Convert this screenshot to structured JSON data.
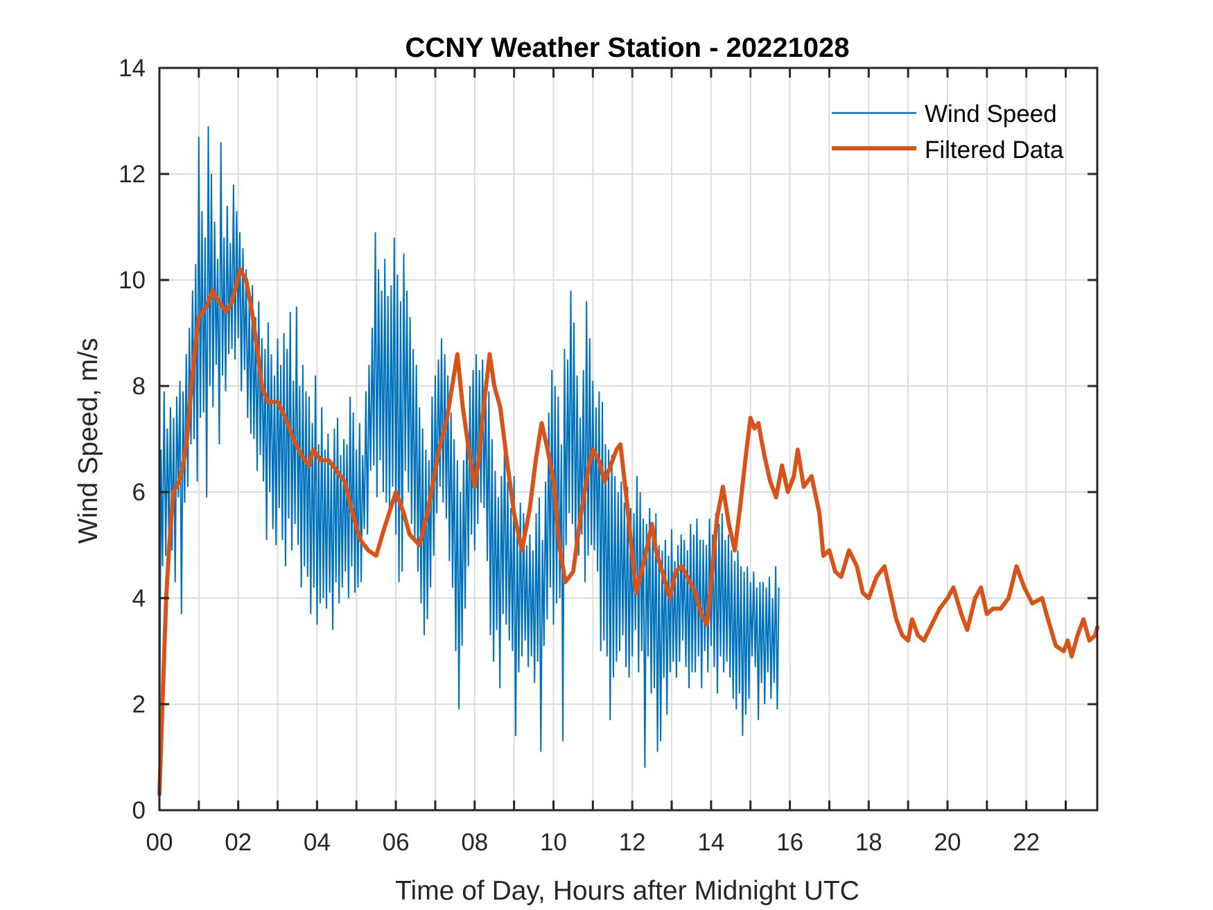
{
  "chart_data": {
    "type": "line",
    "title": "CCNY Weather Station - 20221028",
    "xlabel": "Time of Day, Hours after Midnight UTC",
    "ylabel": "Wind Speed, m/s",
    "xlim": [
      0,
      23.8
    ],
    "ylim": [
      0,
      14
    ],
    "grid": true,
    "legend_position": "top-right",
    "xticks": [
      0,
      2,
      4,
      6,
      8,
      10,
      12,
      14,
      16,
      18,
      20,
      22
    ],
    "xtick_labels": [
      "00",
      "02",
      "04",
      "06",
      "08",
      "10",
      "12",
      "14",
      "16",
      "18",
      "20",
      "22"
    ],
    "xgrid_step_hours": 1,
    "yticks": [
      0,
      2,
      4,
      6,
      8,
      10,
      12,
      14
    ],
    "ytick_labels": [
      "0",
      "2",
      "4",
      "6",
      "8",
      "10",
      "12",
      "14"
    ],
    "series": [
      {
        "name": "Wind Speed",
        "color": "#0072BD",
        "x_start": 0,
        "x_step": 0.04,
        "values": [
          0.3,
          6.8,
          4.6,
          7.9,
          4.8,
          7.2,
          5.2,
          7.6,
          4.9,
          7.4,
          4.3,
          7.8,
          5.9,
          8.1,
          3.7,
          7.9,
          5.8,
          8.6,
          6.1,
          9.1,
          6.9,
          9.8,
          7.0,
          10.3,
          6.2,
          12.7,
          7.4,
          11.3,
          7.5,
          10.8,
          5.9,
          12.9,
          8.0,
          12.0,
          7.6,
          11.1,
          8.4,
          10.4,
          6.9,
          12.6,
          8.2,
          10.8,
          7.9,
          11.4,
          8.6,
          10.7,
          8.7,
          11.8,
          8.5,
          11.3,
          8.9,
          10.9,
          7.9,
          10.6,
          8.3,
          10.2,
          7.4,
          9.6,
          7.1,
          9.9,
          7.0,
          9.3,
          6.4,
          9.6,
          6.7,
          8.9,
          6.2,
          8.7,
          5.1,
          9.2,
          6.0,
          8.6,
          5.3,
          8.2,
          5.0,
          8.9,
          5.7,
          8.4,
          5.1,
          9.0,
          4.6,
          8.7,
          5.5,
          9.4,
          4.9,
          8.1,
          5.4,
          9.5,
          5.0,
          8.0,
          4.2,
          8.4,
          4.6,
          7.9,
          4.4,
          7.8,
          3.7,
          7.3,
          4.2,
          8.2,
          3.5,
          6.9,
          3.9,
          7.6,
          4.0,
          6.8,
          3.8,
          7.1,
          4.1,
          6.5,
          3.4,
          7.2,
          4.3,
          7.4,
          3.9,
          6.7,
          4.2,
          7.0,
          4.5,
          6.9,
          4.0,
          7.8,
          4.6,
          7.5,
          4.1,
          6.8,
          4.2,
          7.3,
          4.3,
          6.7,
          5.3,
          7.9,
          5.2,
          8.4,
          6.4,
          9.1,
          6.5,
          10.9,
          5.9,
          10.2,
          6.6,
          9.8,
          6.0,
          10.4,
          5.8,
          9.7,
          5.6,
          9.9,
          6.1,
          10.8,
          5.2,
          10.1,
          4.3,
          9.6,
          4.5,
          10.5,
          6.4,
          9.8,
          6.0,
          9.3,
          5.4,
          8.7,
          5.1,
          8.4,
          4.5,
          7.6,
          3.9,
          7.2,
          3.3,
          6.8,
          3.6,
          6.6,
          4.2,
          7.8,
          4.8,
          8.2,
          5.6,
          8.5,
          6.1,
          8.9,
          5.8,
          8.6,
          5.5,
          8.2,
          4.7,
          7.5,
          4.2,
          7.0,
          3.0,
          6.6,
          1.9,
          6.0,
          3.1,
          6.6,
          3.8,
          7.3,
          4.6,
          8.0,
          5.2,
          8.3,
          4.9,
          8.6,
          5.4,
          8.3,
          5.8,
          8.5,
          5.7,
          8.0,
          4.7,
          7.9,
          3.3,
          7.0,
          2.8,
          6.4,
          3.4,
          5.9,
          2.3,
          6.3,
          3.7,
          7.1,
          3.5,
          6.2,
          3.2,
          5.7,
          3.0,
          6.3,
          1.4,
          5.4,
          2.6,
          5.8,
          2.9,
          5.6,
          3.2,
          5.0,
          2.7,
          5.2,
          2.9,
          4.9,
          2.4,
          5.6,
          2.8,
          5.9,
          1.1,
          5.1,
          3.1,
          6.2,
          3.6,
          7.5,
          4.2,
          8.3,
          3.5,
          8.0,
          3.9,
          7.8,
          4.0,
          6.9,
          1.3,
          8.7,
          5.0,
          8.5,
          5.6,
          9.8,
          5.4,
          9.2,
          4.9,
          8.2,
          4.8,
          7.4,
          5.2,
          8.3,
          4.3,
          9.6,
          4.8,
          8.9,
          5.0,
          8.1,
          4.9,
          7.6,
          4.5,
          7.9,
          3.0,
          7.7,
          3.2,
          6.9,
          2.9,
          6.8,
          1.7,
          6.7,
          2.5,
          6.3,
          2.8,
          6.0,
          3.0,
          6.2,
          3.3,
          5.8,
          2.7,
          6.1,
          2.5,
          5.7,
          2.9,
          5.6,
          3.4,
          6.3,
          2.6,
          6.0,
          3.0,
          5.5,
          0.8,
          5.4,
          2.9,
          5.7,
          2.2,
          5.3,
          2.3,
          5.6,
          1.1,
          5.0,
          1.3,
          4.9,
          2.5,
          5.1,
          1.8,
          4.8,
          2.6,
          5.3,
          2.8,
          4.7,
          2.5,
          5.0,
          2.8,
          5.2,
          3.2,
          5.1,
          2.7,
          4.9,
          2.3,
          5.4,
          2.6,
          5.2,
          2.6,
          5.5,
          2.9,
          5.1,
          2.3,
          5.1,
          3.0,
          5.0,
          2.6,
          5.5,
          3.1,
          5.2,
          2.7,
          5.6,
          2.2,
          5.4,
          2.9,
          5.6,
          2.6,
          5.1,
          2.8,
          5.2,
          2.5,
          4.9,
          2.1,
          4.7,
          1.9,
          4.9,
          2.2,
          4.6,
          1.4,
          4.5,
          1.8,
          4.6,
          2.1,
          4.3,
          2.9,
          4.5,
          2.7,
          4.2,
          1.7,
          4.3,
          2.4,
          4.3,
          2.0,
          4.2,
          2.6,
          4.4,
          2.1,
          4.0,
          2.4,
          4.6,
          1.9,
          4.2
        ],
        "line_width": "thin"
      },
      {
        "name": "Filtered Data",
        "color": "#D95319",
        "x": [
          0,
          0.1,
          0.17,
          0.25,
          0.35,
          0.5,
          0.6,
          0.7,
          0.8,
          0.9,
          1.0,
          1.2,
          1.35,
          1.5,
          1.7,
          1.85,
          2.05,
          2.2,
          2.35,
          2.5,
          2.6,
          2.75,
          3.0,
          3.2,
          3.4,
          3.6,
          3.8,
          3.9,
          4.1,
          4.3,
          4.5,
          4.7,
          4.9,
          5.1,
          5.3,
          5.5,
          5.7,
          6.0,
          6.2,
          6.35,
          6.6,
          6.8,
          7.0,
          7.1,
          7.3,
          7.56,
          7.7,
          7.85,
          8.0,
          8.1,
          8.2,
          8.38,
          8.5,
          8.65,
          8.8,
          9.0,
          9.2,
          9.4,
          9.55,
          9.7,
          9.85,
          10.0,
          10.15,
          10.3,
          10.5,
          10.7,
          10.9,
          11.0,
          11.15,
          11.3,
          11.45,
          11.6,
          11.7,
          11.85,
          12.0,
          12.1,
          12.3,
          12.5,
          12.6,
          12.8,
          12.95,
          13.1,
          13.25,
          13.4,
          13.6,
          13.75,
          13.9,
          14.0,
          14.15,
          14.3,
          14.45,
          14.6,
          14.75,
          14.9,
          15.0,
          15.1,
          15.2,
          15.35,
          15.5,
          15.65,
          15.8,
          15.95,
          16.1,
          16.2,
          16.35,
          16.55,
          16.75,
          16.85,
          17.0,
          17.15,
          17.3,
          17.5,
          17.7,
          17.85,
          18.0,
          18.2,
          18.4,
          18.55,
          18.7,
          18.85,
          19.0,
          19.1,
          19.25,
          19.4,
          19.6,
          19.8,
          20.0,
          20.15,
          20.35,
          20.5,
          20.7,
          20.85,
          21.0,
          21.15,
          21.35,
          21.55,
          21.75,
          21.95,
          22.15,
          22.4,
          22.55,
          22.75,
          22.95,
          23.05,
          23.15,
          23.3,
          23.45,
          23.6,
          23.75,
          23.8
        ],
        "values": [
          0.3,
          2.5,
          4.0,
          5.0,
          6.0,
          6.2,
          6.5,
          7.0,
          7.9,
          8.7,
          9.3,
          9.5,
          9.8,
          9.6,
          9.4,
          9.6,
          10.2,
          10.0,
          9.4,
          8.6,
          8.0,
          7.7,
          7.7,
          7.4,
          7.0,
          6.7,
          6.5,
          6.8,
          6.6,
          6.6,
          6.4,
          6.2,
          5.6,
          5.1,
          4.9,
          4.8,
          5.3,
          6.0,
          5.6,
          5.2,
          5.0,
          5.6,
          6.4,
          6.8,
          7.4,
          8.6,
          7.6,
          6.8,
          6.1,
          6.6,
          7.4,
          8.6,
          8.0,
          7.6,
          6.7,
          5.6,
          4.9,
          5.7,
          6.6,
          7.3,
          6.8,
          6.2,
          5.0,
          4.3,
          4.5,
          5.6,
          6.5,
          6.8,
          6.6,
          6.2,
          6.5,
          6.8,
          6.9,
          5.9,
          4.8,
          4.1,
          4.7,
          5.4,
          4.9,
          4.4,
          4.0,
          4.5,
          4.6,
          4.4,
          4.1,
          3.7,
          3.5,
          4.3,
          5.5,
          6.1,
          5.4,
          4.9,
          5.8,
          6.8,
          7.4,
          7.2,
          7.3,
          6.7,
          6.2,
          5.9,
          6.5,
          6.0,
          6.3,
          6.8,
          6.1,
          6.3,
          5.6,
          4.8,
          4.9,
          4.5,
          4.4,
          4.9,
          4.6,
          4.1,
          4.0,
          4.4,
          4.6,
          4.1,
          3.6,
          3.3,
          3.2,
          3.6,
          3.3,
          3.2,
          3.5,
          3.8,
          4.0,
          4.2,
          3.7,
          3.4,
          4.0,
          4.2,
          3.7,
          3.8,
          3.8,
          4.0,
          4.6,
          4.2,
          3.9,
          4.0,
          3.6,
          3.1,
          3.0,
          3.2,
          2.9,
          3.3,
          3.6,
          3.2,
          3.3,
          3.45
        ],
        "line_width": "thick"
      }
    ]
  }
}
